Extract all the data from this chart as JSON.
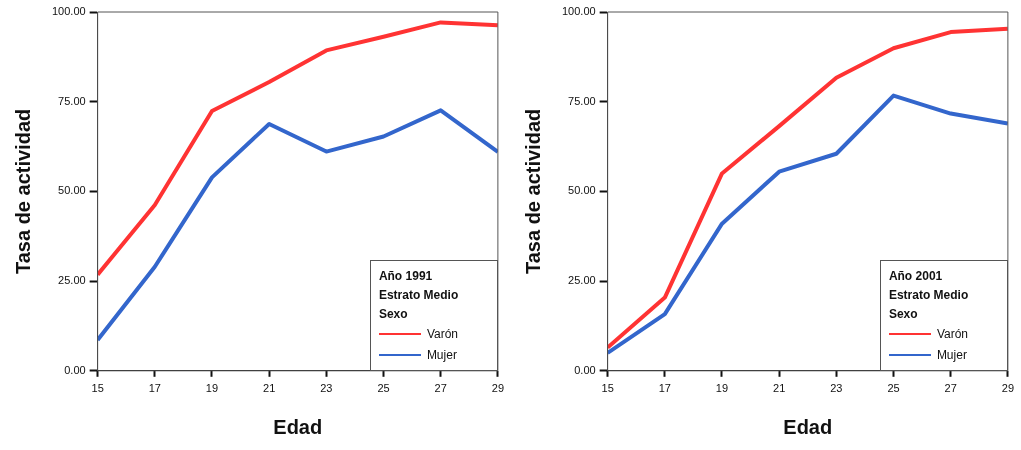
{
  "chart_data": [
    {
      "type": "line",
      "xlabel": "Edad",
      "ylabel": "Tasa de actividad",
      "legend_title": "Año 1991\nEstrato Medio\nSexo",
      "legend": "bottom right",
      "x": [
        15,
        17,
        19,
        21,
        23,
        25,
        27,
        29
      ],
      "xlim": [
        15,
        29
      ],
      "xticks": [
        15,
        17,
        19,
        21,
        23,
        25,
        27,
        29
      ],
      "ylim": [
        0,
        100
      ],
      "yticks": [
        {
          "value": 0,
          "label": "0.00"
        },
        {
          "value": 25,
          "label": "25.00"
        },
        {
          "value": 50,
          "label": "50.00"
        },
        {
          "value": 75,
          "label": "75.00"
        },
        {
          "value": 100,
          "label": "100.00"
        }
      ],
      "series": [
        {
          "name": "Varón",
          "color": "#ff3333",
          "values": [
            26.8,
            46.2,
            72.4,
            80.5,
            89.3,
            93.1,
            97.1,
            96.3
          ]
        },
        {
          "name": "Mujer",
          "color": "#3366cc",
          "values": [
            8.6,
            29.0,
            53.9,
            68.8,
            61.1,
            65.3,
            72.6,
            61.0
          ]
        }
      ]
    },
    {
      "type": "line",
      "xlabel": "Edad",
      "ylabel": "Tasa de actividad",
      "legend_title": "Año 2001\nEstrato Medio\nSexo",
      "legend": "bottom right",
      "x": [
        15,
        17,
        19,
        21,
        23,
        25,
        27,
        29
      ],
      "xlim": [
        15,
        29
      ],
      "xticks": [
        15,
        17,
        19,
        21,
        23,
        25,
        27,
        29
      ],
      "ylim": [
        0,
        100
      ],
      "yticks": [
        {
          "value": 0,
          "label": "0.00"
        },
        {
          "value": 25,
          "label": "25.00"
        },
        {
          "value": 50,
          "label": "50.00"
        },
        {
          "value": 75,
          "label": "75.00"
        },
        {
          "value": 100,
          "label": "100.00"
        }
      ],
      "series": [
        {
          "name": "Varón",
          "color": "#ff3333",
          "values": [
            6.5,
            20.4,
            55.0,
            68.2,
            81.7,
            89.9,
            94.4,
            95.3
          ]
        },
        {
          "name": "Mujer",
          "color": "#3366cc",
          "values": [
            5.0,
            15.8,
            41.0,
            55.5,
            60.5,
            76.7,
            71.7,
            68.9
          ]
        }
      ]
    }
  ]
}
